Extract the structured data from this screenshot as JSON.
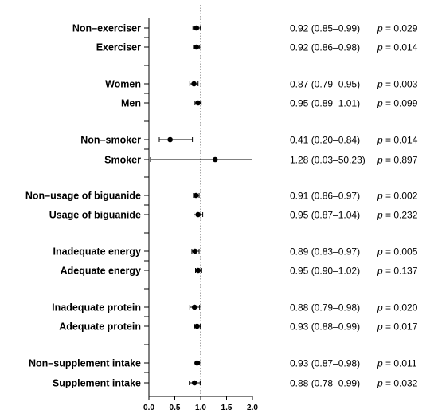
{
  "chart_data": {
    "type": "forest",
    "xlim": [
      0.0,
      2.0
    ],
    "x_ticks": [
      "0.0",
      "0.5",
      "1.0",
      "1.5",
      "2.0"
    ],
    "reference_line": 1.0,
    "rows": [
      {
        "label": "Non–exerciser",
        "est": 0.92,
        "lo": 0.85,
        "hi": 0.99,
        "ci_text": "0.92 (0.85–0.99)",
        "p_value": "0.029"
      },
      {
        "label": "Exerciser",
        "est": 0.92,
        "lo": 0.86,
        "hi": 0.98,
        "ci_text": "0.92 (0.86–0.98)",
        "p_value": "0.014"
      },
      {
        "label": "Women",
        "est": 0.87,
        "lo": 0.79,
        "hi": 0.95,
        "ci_text": "0.87 (0.79–0.95)",
        "p_value": "0.003"
      },
      {
        "label": "Men",
        "est": 0.95,
        "lo": 0.89,
        "hi": 1.01,
        "ci_text": "0.95 (0.89–1.01)",
        "p_value": "0.099"
      },
      {
        "label": "Non–smoker",
        "est": 0.41,
        "lo": 0.2,
        "hi": 0.84,
        "ci_text": "0.41 (0.20–0.84)",
        "p_value": "0.014"
      },
      {
        "label": "Smoker",
        "est": 1.28,
        "lo": 0.03,
        "hi": 50.23,
        "ci_text": "1.28 (0.03–50.23)",
        "p_value": "0.897"
      },
      {
        "label": "Non–usage of biguanide",
        "est": 0.91,
        "lo": 0.86,
        "hi": 0.97,
        "ci_text": "0.91 (0.86–0.97)",
        "p_value": "0.002"
      },
      {
        "label": "Usage of biguanide",
        "est": 0.95,
        "lo": 0.87,
        "hi": 1.04,
        "ci_text": "0.95 (0.87–1.04)",
        "p_value": "0.232"
      },
      {
        "label": "Inadequate energy",
        "est": 0.89,
        "lo": 0.83,
        "hi": 0.97,
        "ci_text": "0.89 (0.83–0.97)",
        "p_value": "0.005"
      },
      {
        "label": "Adequate energy",
        "est": 0.95,
        "lo": 0.9,
        "hi": 1.02,
        "ci_text": "0.95 (0.90–1.02)",
        "p_value": "0.137"
      },
      {
        "label": "Inadequate protein",
        "est": 0.88,
        "lo": 0.79,
        "hi": 0.98,
        "ci_text": "0.88 (0.79–0.98)",
        "p_value": "0.020"
      },
      {
        "label": "Adequate protein",
        "est": 0.93,
        "lo": 0.88,
        "hi": 0.99,
        "ci_text": "0.93 (0.88–0.99)",
        "p_value": "0.017"
      },
      {
        "label": "Non–supplement intake",
        "est": 0.93,
        "lo": 0.87,
        "hi": 0.98,
        "ci_text": "0.93 (0.87–0.98)",
        "p_value": "0.011"
      },
      {
        "label": "Supplement intake",
        "est": 0.88,
        "lo": 0.78,
        "hi": 0.99,
        "ci_text": "0.88 (0.78–0.99)",
        "p_value": "0.032"
      }
    ],
    "p_prefix": "p",
    "p_equals": " = ",
    "grid": false,
    "colors": {
      "marker": "#000000",
      "axis": "#000000",
      "reference": "#555555"
    }
  }
}
